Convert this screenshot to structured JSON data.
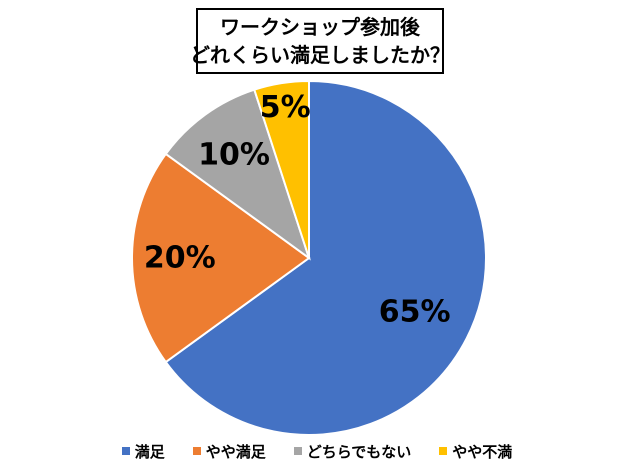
{
  "chart_data": {
    "type": "pie",
    "title_lines": [
      "ワークショップ参加後",
      "どれくらい満足しましたか？"
    ],
    "categories": [
      "満足",
      "やや満足",
      "どちらでもない",
      "やや不満"
    ],
    "values": [
      65,
      20,
      10,
      5
    ],
    "value_labels": [
      "65%",
      "20%",
      "10%",
      "5%"
    ],
    "colors": [
      "#4472C4",
      "#ED7D31",
      "#A5A5A5",
      "#FFC000"
    ],
    "start": "12 o'clock",
    "direction": "clockwise",
    "legend_position": "bottom"
  }
}
